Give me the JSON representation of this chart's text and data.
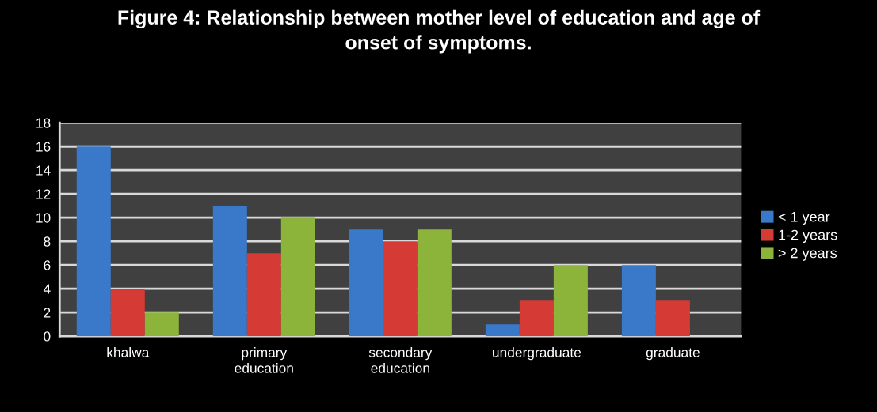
{
  "chart_data": {
    "type": "bar",
    "title": "Figure 4: Relationship between mother level of education and age of\nonset of symptoms.",
    "categories": [
      "khalwa",
      "primary\neducation",
      "secondary\neducation",
      "undergraduate",
      "graduate"
    ],
    "series": [
      {
        "name": "< 1 year",
        "color": "#3a78c9",
        "values": [
          16,
          11,
          9,
          1,
          6
        ]
      },
      {
        "name": "1-2 years",
        "color": "#d63a34",
        "values": [
          4,
          7,
          8,
          3,
          3
        ]
      },
      {
        "name": "> 2 years",
        "color": "#8db43a",
        "values": [
          2,
          10,
          9,
          6,
          0
        ]
      }
    ],
    "ylim": [
      0,
      18
    ],
    "yticks": [
      0,
      2,
      4,
      6,
      8,
      10,
      12,
      14,
      16,
      18
    ],
    "grid": "y",
    "legend": "right"
  }
}
